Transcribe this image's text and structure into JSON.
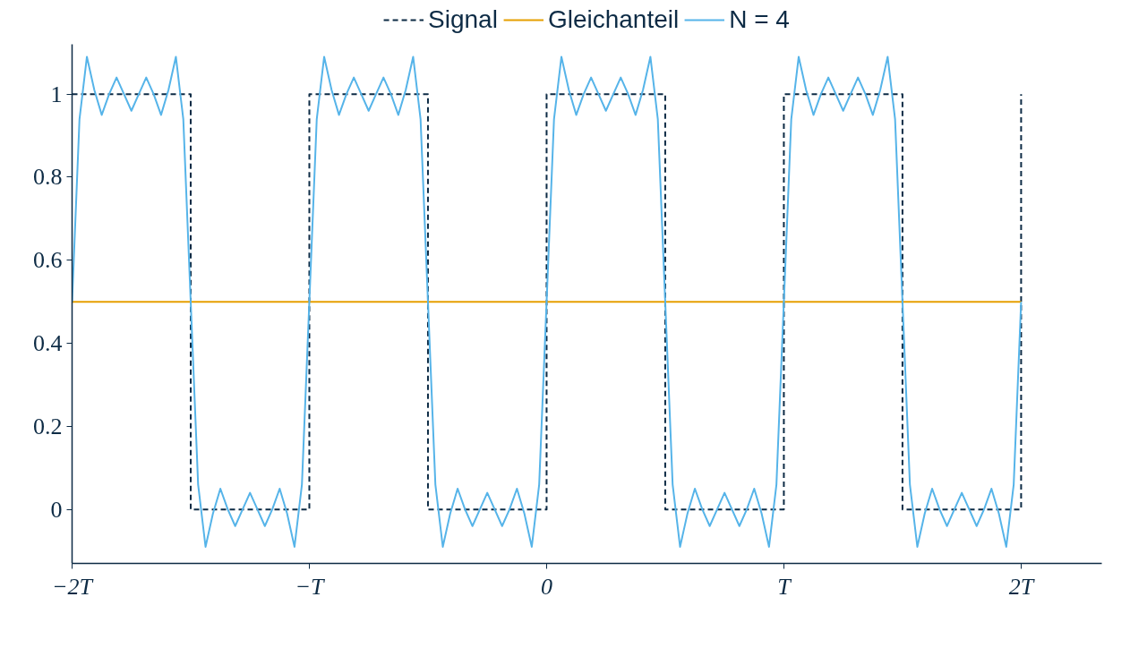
{
  "chart_data": {
    "type": "line",
    "legend": "top",
    "grid": false,
    "marker": "none",
    "xlim": [
      -2,
      2.34
    ],
    "ylim": [
      -0.13,
      1.12
    ],
    "xticks": [
      {
        "value": -2,
        "label": "−2T"
      },
      {
        "value": -1,
        "label": "−T"
      },
      0,
      {
        "value": 1,
        "label": "T"
      },
      {
        "value": 2,
        "label": "2T"
      }
    ],
    "yticks": [
      0,
      0.2,
      0.4,
      0.6,
      0.8,
      1
    ],
    "series": [
      {
        "name": "Signal",
        "color": "#0d2b45",
        "line_style": "dashed",
        "x": [
          -2,
          -1.5,
          -1.5,
          -1,
          -1,
          -0.5,
          -0.5,
          0,
          0,
          0.5,
          0.5,
          1,
          1,
          1.5,
          1.5,
          2,
          2
        ],
        "values": [
          1,
          1,
          0,
          0,
          1,
          1,
          0,
          0,
          1,
          1,
          0,
          0,
          1,
          1,
          0,
          0,
          1
        ]
      },
      {
        "name": "Gleichanteil",
        "color": "#e69f00",
        "line_style": "solid",
        "x": [
          -2,
          2
        ],
        "values": [
          0.5,
          0.5
        ]
      },
      {
        "name": "N = 4",
        "color": "#56b4e9",
        "line_style": "solid",
        "x": [
          -2,
          -1.96875,
          -1.9375,
          -1.90625,
          -1.875,
          -1.84375,
          -1.8125,
          -1.78125,
          -1.75,
          -1.71875,
          -1.6875,
          -1.65625,
          -1.625,
          -1.59375,
          -1.5625,
          -1.53125,
          -1.5,
          -1.46875,
          -1.4375,
          -1.40625,
          -1.375,
          -1.34375,
          -1.3125,
          -1.28125,
          -1.25,
          -1.21875,
          -1.1875,
          -1.15625,
          -1.125,
          -1.09375,
          -1.0625,
          -1.03125,
          -1,
          -0.96875,
          -0.9375,
          -0.90625,
          -0.875,
          -0.84375,
          -0.8125,
          -0.78125,
          -0.75,
          -0.71875,
          -0.6875,
          -0.65625,
          -0.625,
          -0.59375,
          -0.5625,
          -0.53125,
          -0.5,
          -0.46875,
          -0.4375,
          -0.40625,
          -0.375,
          -0.34375,
          -0.3125,
          -0.28125,
          -0.25,
          -0.21875,
          -0.1875,
          -0.15625,
          -0.125,
          -0.09375,
          -0.0625,
          -0.03125,
          0,
          0.03125,
          0.0625,
          0.09375,
          0.125,
          0.15625,
          0.1875,
          0.21875,
          0.25,
          0.28125,
          0.3125,
          0.34375,
          0.375,
          0.40625,
          0.4375,
          0.46875,
          0.5,
          0.53125,
          0.5625,
          0.59375,
          0.625,
          0.65625,
          0.6875,
          0.71875,
          0.75,
          0.78125,
          0.8125,
          0.84375,
          0.875,
          0.90625,
          0.9375,
          0.96875,
          1,
          1.03125,
          1.0625,
          1.09375,
          1.125,
          1.15625,
          1.1875,
          1.21875,
          1.25,
          1.28125,
          1.3125,
          1.34375,
          1.375,
          1.40625,
          1.4375,
          1.46875,
          1.5,
          1.53125,
          1.5625,
          1.59375,
          1.625,
          1.65625,
          1.6875,
          1.71875,
          1.75,
          1.78125,
          1.8125,
          1.84375,
          1.875,
          1.90625,
          1.9375,
          1.96875,
          2
        ],
        "values": [
          0.5,
          0.94,
          1.09,
          1.01,
          0.95,
          1.0,
          1.04,
          1.0,
          0.96,
          1.0,
          1.04,
          1.0,
          0.95,
          1.01,
          1.09,
          0.94,
          0.5,
          0.06,
          -0.09,
          -0.01,
          0.05,
          0.0,
          -0.04,
          0.0,
          0.04,
          0.0,
          -0.04,
          0.0,
          0.05,
          -0.01,
          -0.09,
          0.06,
          0.5,
          0.94,
          1.09,
          1.01,
          0.95,
          1.0,
          1.04,
          1.0,
          0.96,
          1.0,
          1.04,
          1.0,
          0.95,
          1.01,
          1.09,
          0.94,
          0.5,
          0.06,
          -0.09,
          -0.01,
          0.05,
          0.0,
          -0.04,
          0.0,
          0.04,
          0.0,
          -0.04,
          0.0,
          0.05,
          -0.01,
          -0.09,
          0.06,
          0.5,
          0.94,
          1.09,
          1.01,
          0.95,
          1.0,
          1.04,
          1.0,
          0.96,
          1.0,
          1.04,
          1.0,
          0.95,
          1.01,
          1.09,
          0.94,
          0.5,
          0.06,
          -0.09,
          -0.01,
          0.05,
          0.0,
          -0.04,
          0.0,
          0.04,
          0.0,
          -0.04,
          0.0,
          0.05,
          -0.01,
          -0.09,
          0.06,
          0.5,
          0.94,
          1.09,
          1.01,
          0.95,
          1.0,
          1.04,
          1.0,
          0.96,
          1.0,
          1.04,
          1.0,
          0.95,
          1.01,
          1.09,
          0.94,
          0.5,
          0.06,
          -0.09,
          -0.01,
          0.05,
          0.0,
          -0.04,
          0.0,
          0.04,
          0.0,
          -0.04,
          0.0,
          0.05,
          -0.01,
          -0.09,
          0.06,
          0.5
        ]
      }
    ]
  }
}
